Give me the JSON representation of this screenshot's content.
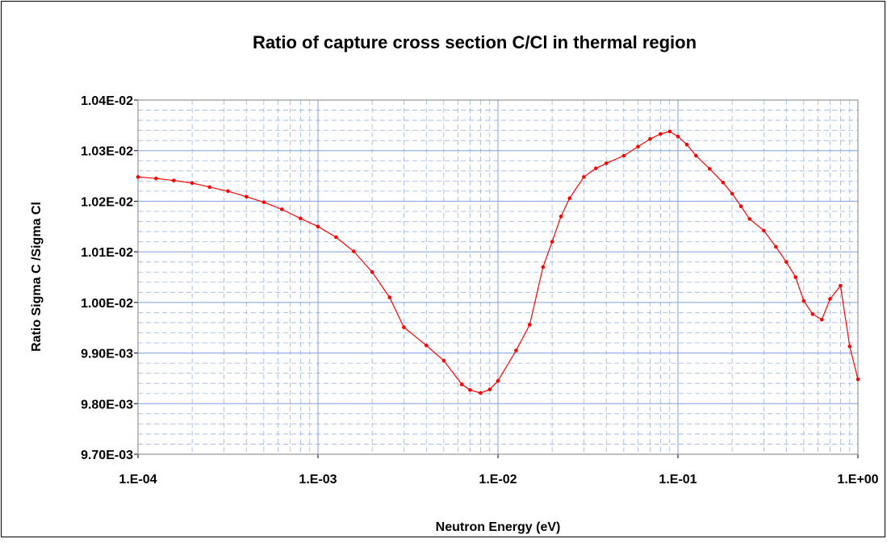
{
  "chart_data": {
    "type": "line",
    "title": "Ratio of capture cross section C/Cl in thermal region",
    "x_label": "Neutron Energy (eV)",
    "y_label": "Ratio Sigma C /Sigma Cl",
    "xscale": "log",
    "grid": true,
    "xlim": [
      0.0001,
      1
    ],
    "xticks": [
      {
        "value": 0.0001,
        "label": "1.E-04"
      },
      {
        "value": 0.001,
        "label": "1.E-03"
      },
      {
        "value": 0.01,
        "label": "1.E-02"
      },
      {
        "value": 0.1,
        "label": "1.E-01"
      },
      {
        "value": 1,
        "label": "1.E+00"
      }
    ],
    "ylim": [
      0.0097,
      0.0104
    ],
    "yticks": [
      {
        "value": 0.0097,
        "label": "9.70E-03"
      },
      {
        "value": 0.0098,
        "label": "9.80E-03"
      },
      {
        "value": 0.0099,
        "label": "9.90E-03"
      },
      {
        "value": 0.01,
        "label": "1.00E-02"
      },
      {
        "value": 0.0101,
        "label": "1.01E-02"
      },
      {
        "value": 0.0102,
        "label": "1.02E-02"
      },
      {
        "value": 0.0103,
        "label": "1.03E-02"
      },
      {
        "value": 0.0104,
        "label": "1.04E-02"
      }
    ],
    "x": [
      0.0001,
      0.000126,
      0.000158,
      0.0002,
      0.00025,
      0.000316,
      0.0004,
      0.0005,
      0.00063,
      0.0008,
      0.001,
      0.00126,
      0.00158,
      0.002,
      0.0025,
      0.003,
      0.004,
      0.005,
      0.0063,
      0.007,
      0.008,
      0.009,
      0.01,
      0.0126,
      0.015,
      0.0178,
      0.02,
      0.0224,
      0.025,
      0.03,
      0.035,
      0.04,
      0.05,
      0.06,
      0.07,
      0.08,
      0.09,
      0.1,
      0.112,
      0.126,
      0.15,
      0.178,
      0.2,
      0.224,
      0.25,
      0.3,
      0.35,
      0.4,
      0.45,
      0.5,
      0.56,
      0.63,
      0.7,
      0.8,
      0.9,
      1
    ],
    "series": [
      {
        "name": "C/Cl",
        "color": "#ff0000",
        "values": [
          0.010248,
          0.010245,
          0.010241,
          0.010236,
          0.010228,
          0.01022,
          0.010209,
          0.010198,
          0.010184,
          0.010166,
          0.01015,
          0.010129,
          0.010101,
          0.01006,
          0.01001,
          0.009951,
          0.009915,
          0.009885,
          0.009838,
          0.009827,
          0.009821,
          0.009828,
          0.009845,
          0.009905,
          0.009956,
          0.01007,
          0.01012,
          0.01017,
          0.010206,
          0.010248,
          0.010265,
          0.010275,
          0.01029,
          0.010308,
          0.010323,
          0.010333,
          0.010338,
          0.010328,
          0.010312,
          0.01029,
          0.010264,
          0.010237,
          0.010215,
          0.01019,
          0.010165,
          0.010142,
          0.01011,
          0.01008,
          0.01005,
          0.010003,
          0.009977,
          0.009966,
          0.010007,
          0.010033,
          0.009913,
          0.009848
        ]
      }
    ]
  }
}
